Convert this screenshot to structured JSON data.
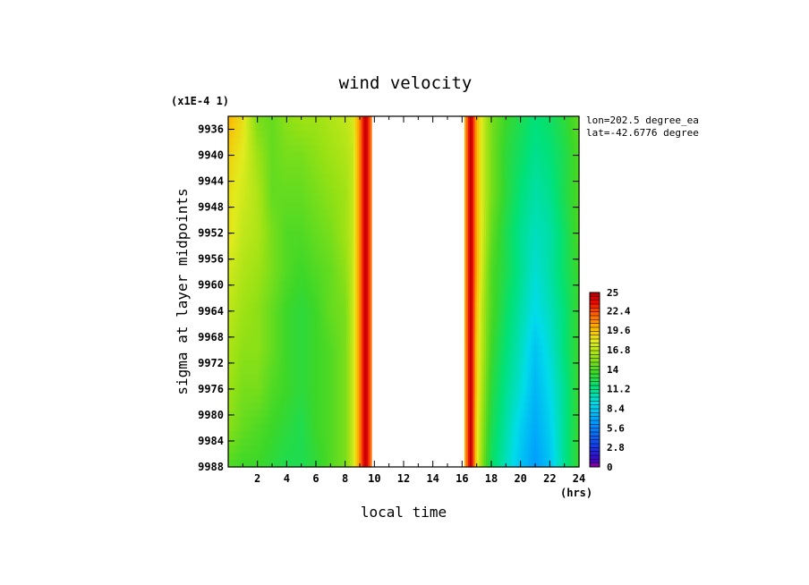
{
  "chart_data": {
    "type": "heatmap",
    "title": "wind velocity",
    "xlabel": "local time",
    "x_unit": "(hrs)",
    "ylabel": "sigma at layer midpoints",
    "y_scale_note": "(x1E-4 1)",
    "annotations": [
      "lon=202.5 degree_ea",
      "lat=-42.6776 degree"
    ],
    "xlim": [
      0,
      24
    ],
    "ylim": [
      9988,
      9934
    ],
    "x_ticks": [
      2,
      4,
      6,
      8,
      10,
      12,
      14,
      16,
      18,
      20,
      22,
      24
    ],
    "x_tick_labels": [
      "2",
      "4",
      "6",
      "8",
      "10",
      "12",
      "14",
      "16",
      "18",
      "20",
      "22",
      "24"
    ],
    "y_ticks": [
      9936,
      9940,
      9944,
      9948,
      9952,
      9956,
      9960,
      9964,
      9968,
      9972,
      9976,
      9980,
      9984,
      9988
    ],
    "y_tick_labels": [
      "9936",
      "9940",
      "9944",
      "9948",
      "9952",
      "9956",
      "9960",
      "9964",
      "9968",
      "9972",
      "9976",
      "9980",
      "9984",
      "9988"
    ],
    "colorbar": {
      "min": 0,
      "max": 25,
      "tick_labels": [
        "25",
        "22.4",
        "19.6",
        "16.8",
        "14",
        "11.2",
        "8.4",
        "5.6",
        "2.8",
        "0"
      ],
      "tick_values": [
        25,
        22.4,
        19.6,
        16.8,
        14,
        11.2,
        8.4,
        5.6,
        2.8,
        0
      ]
    },
    "missing_x_range": [
      9.8,
      16.2
    ],
    "x": [
      0,
      1,
      2,
      3,
      4,
      5,
      6,
      7,
      8,
      8.5,
      9,
      9.4,
      9.8,
      16.2,
      16.6,
      17,
      17.5,
      18,
      19,
      20,
      21,
      22,
      23,
      24
    ],
    "y": [
      9934,
      9940,
      9946,
      9952,
      9958,
      9964,
      9970,
      9976,
      9982,
      9988
    ],
    "values": [
      [
        20.0,
        18.5,
        15.0,
        14.5,
        15.5,
        16.0,
        16.0,
        16.5,
        17.0,
        17.5,
        21.0,
        25.0,
        21.0,
        20.0,
        25.0,
        20.0,
        17.0,
        15.0,
        13.5,
        12.5,
        11.5,
        12.0,
        13.0,
        14.5
      ],
      [
        19.0,
        18.0,
        16.0,
        14.5,
        15.0,
        15.0,
        15.5,
        16.0,
        16.5,
        17.0,
        21.0,
        25.0,
        21.0,
        20.0,
        25.0,
        20.0,
        17.0,
        15.0,
        13.0,
        12.0,
        11.0,
        11.5,
        12.5,
        14.0
      ],
      [
        18.5,
        17.5,
        16.5,
        14.5,
        14.5,
        14.5,
        15.0,
        15.5,
        16.0,
        17.0,
        21.0,
        25.0,
        21.0,
        20.0,
        25.0,
        20.0,
        17.0,
        15.0,
        13.0,
        11.5,
        10.5,
        11.0,
        12.5,
        14.0
      ],
      [
        18.5,
        17.0,
        16.5,
        15.0,
        14.0,
        14.0,
        14.5,
        15.0,
        16.0,
        17.0,
        21.0,
        25.0,
        21.0,
        20.0,
        25.0,
        20.0,
        17.0,
        14.5,
        12.5,
        11.0,
        10.0,
        10.5,
        12.0,
        14.0
      ],
      [
        17.5,
        16.5,
        16.0,
        15.0,
        14.0,
        13.5,
        14.0,
        14.5,
        15.5,
        17.0,
        21.0,
        25.0,
        21.0,
        20.0,
        25.0,
        20.0,
        16.5,
        14.0,
        12.5,
        11.0,
        9.5,
        10.5,
        12.0,
        13.5
      ],
      [
        17.0,
        16.0,
        15.5,
        14.5,
        13.5,
        13.0,
        13.5,
        14.5,
        15.0,
        17.0,
        21.0,
        25.0,
        21.0,
        20.0,
        25.0,
        19.5,
        16.0,
        14.0,
        12.0,
        10.5,
        9.0,
        10.0,
        11.5,
        13.5
      ],
      [
        16.5,
        15.5,
        15.5,
        14.5,
        13.5,
        13.0,
        13.5,
        14.0,
        15.0,
        17.0,
        21.0,
        25.0,
        21.0,
        20.0,
        25.0,
        19.0,
        16.0,
        13.5,
        11.5,
        10.0,
        8.0,
        9.5,
        11.5,
        13.5
      ],
      [
        16.0,
        15.0,
        15.0,
        14.0,
        13.5,
        13.0,
        13.5,
        14.0,
        15.0,
        17.0,
        21.0,
        25.0,
        21.0,
        20.0,
        25.0,
        19.0,
        15.5,
        13.0,
        11.0,
        9.5,
        7.5,
        9.0,
        11.0,
        13.5
      ],
      [
        15.5,
        14.5,
        14.0,
        13.5,
        13.0,
        12.5,
        13.5,
        14.0,
        15.0,
        17.0,
        21.0,
        25.0,
        21.0,
        20.0,
        25.0,
        18.5,
        15.0,
        12.5,
        10.5,
        8.5,
        7.0,
        8.5,
        11.0,
        13.5
      ],
      [
        14.0,
        13.5,
        13.5,
        13.0,
        12.5,
        12.5,
        13.0,
        14.0,
        15.0,
        17.0,
        21.0,
        25.0,
        21.0,
        20.0,
        25.0,
        18.5,
        14.5,
        12.0,
        10.0,
        8.0,
        6.5,
        8.0,
        11.0,
        13.5
      ]
    ]
  }
}
